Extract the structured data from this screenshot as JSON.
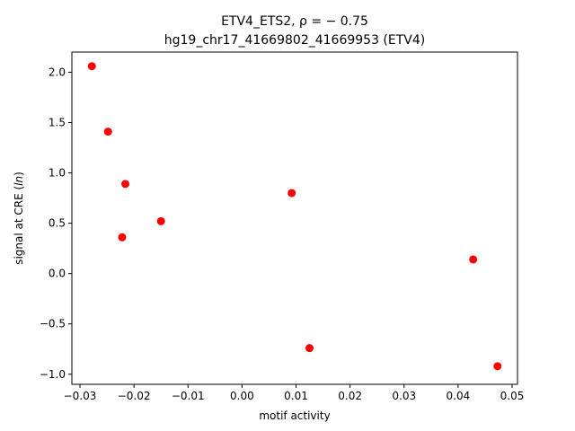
{
  "chart_data": {
    "type": "scatter",
    "title_line1": "ETV4_ETS2, ρ = − 0.75",
    "title_line2": "hg19_chr17_41669802_41669953 (ETV4)",
    "xlabel": "motif activity",
    "ylabel": "signal at CRE (ln)",
    "xlim": [
      -0.0315,
      0.051
    ],
    "ylim": [
      -1.1,
      2.2
    ],
    "xticks": [
      -0.03,
      -0.02,
      -0.01,
      0.0,
      0.01,
      0.02,
      0.03,
      0.04,
      0.05
    ],
    "xtick_labels": [
      "−0.03",
      "−0.02",
      "−0.01",
      "0.00",
      "0.01",
      "0.02",
      "0.03",
      "0.04",
      "0.05"
    ],
    "yticks": [
      -1.0,
      -0.5,
      0.0,
      0.5,
      1.0,
      1.5,
      2.0
    ],
    "ytick_labels": [
      "−1.0",
      "−0.5",
      "0.0",
      "0.5",
      "1.0",
      "1.5",
      "2.0"
    ],
    "grid": false,
    "marker_color": "#ff0000",
    "points": [
      {
        "x": -0.0278,
        "y": 2.06
      },
      {
        "x": -0.0248,
        "y": 1.41
      },
      {
        "x": -0.0216,
        "y": 0.89
      },
      {
        "x": -0.0222,
        "y": 0.36
      },
      {
        "x": -0.015,
        "y": 0.52
      },
      {
        "x": 0.0092,
        "y": 0.8
      },
      {
        "x": 0.0125,
        "y": -0.74
      },
      {
        "x": 0.0428,
        "y": 0.14
      },
      {
        "x": 0.0473,
        "y": -0.92
      }
    ]
  }
}
